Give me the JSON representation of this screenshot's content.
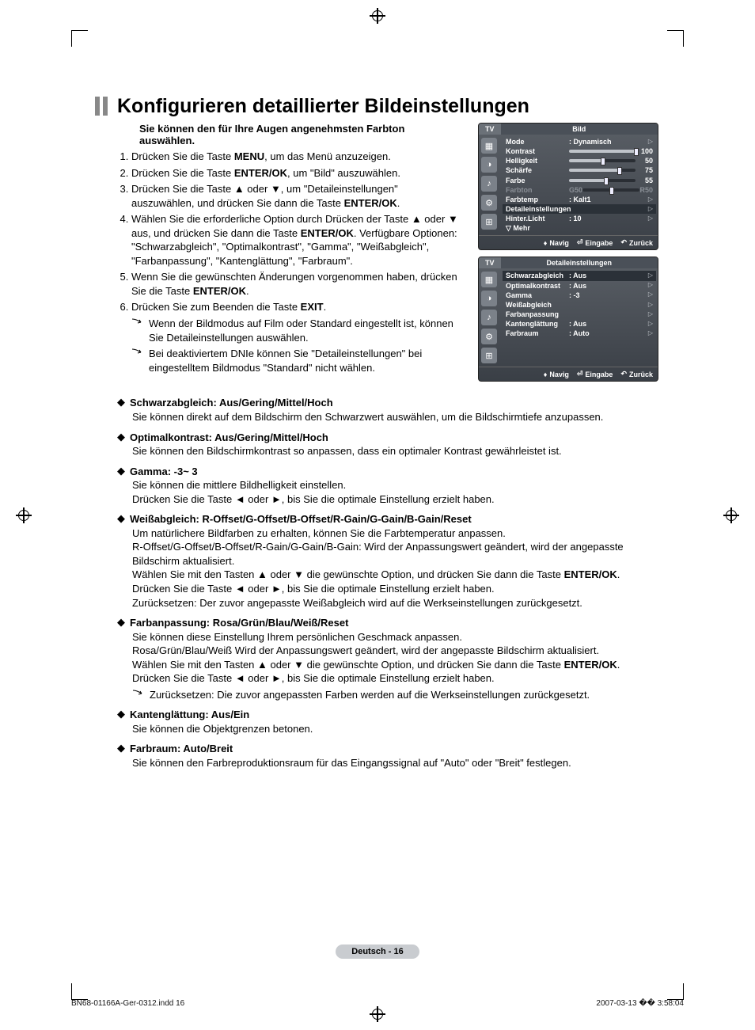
{
  "title": "Konfigurieren detaillierter Bildeinstellungen",
  "intro": "Sie können den für Ihre Augen angenehmsten Farbton auswählen.",
  "steps": [
    {
      "pre": "Drücken Sie die Taste ",
      "b": "MENU",
      "post": ", um das Menü anzuzeigen."
    },
    {
      "pre": "Drücken Sie die Taste ",
      "b": "ENTER/OK",
      "post": ", um \"Bild\" auszuwählen."
    },
    {
      "pre": "Drücken Sie die Taste ▲ oder ▼, um \"Detaileinstellungen\" auszuwählen, und drücken Sie dann die Taste ",
      "b": "ENTER/OK",
      "post": "."
    },
    {
      "pre": "Wählen Sie die erforderliche Option durch Drücken der Taste ▲ oder ▼ aus, und drücken Sie dann die Taste ",
      "b": "ENTER/OK",
      "post": ". Verfügbare Optionen: \"Schwarzabgleich\", \"Optimalkontrast\", \"Gamma\", \"Weißabgleich\", \"Farbanpassung\", \"Kantenglättung\", \"Farbraum\"."
    },
    {
      "pre": "Wenn Sie die gewünschten Änderungen vorgenommen haben, drücken Sie die Taste ",
      "b": "ENTER/OK",
      "post": "."
    },
    {
      "pre": "Drücken Sie zum Beenden die Taste ",
      "b": "EXIT",
      "post": "."
    }
  ],
  "notes_top": [
    "Wenn der Bildmodus auf Film oder Standard eingestellt ist, können Sie Detaileinstellungen auswählen.",
    "Bei deaktiviertem DNIe können Sie \"Detaileinstellungen\" bei eingestelltem Bildmodus \"Standard\" nicht wählen."
  ],
  "osd1": {
    "tab": "TV",
    "title": "Bild",
    "rows": [
      {
        "label": "Mode",
        "value": ": Dynamisch",
        "type": "arrow"
      },
      {
        "label": "Kontrast",
        "type": "slider",
        "fill": 100,
        "num": "100"
      },
      {
        "label": "Helligkeit",
        "type": "slider",
        "fill": 50,
        "num": "50"
      },
      {
        "label": "Schärfe",
        "type": "slider",
        "fill": 75,
        "num": "75"
      },
      {
        "label": "Farbe",
        "type": "slider",
        "fill": 55,
        "num": "55"
      },
      {
        "label": "Farbton",
        "type": "gr",
        "left": "G50",
        "right": "R50",
        "dim": true
      },
      {
        "label": "Farbtemp",
        "value": ": Kalt1",
        "type": "arrow"
      },
      {
        "label": "Detaileinstellungen",
        "type": "hl"
      },
      {
        "label": "Hinter.Licht",
        "value": ": 10",
        "type": "arrow"
      },
      {
        "label": "▽ Mehr",
        "type": "plain"
      }
    ],
    "footer": {
      "nav": "Navig",
      "enter": "Eingabe",
      "back": "Zurück"
    }
  },
  "osd2": {
    "tab": "TV",
    "title": "Detaileinstellungen",
    "rows": [
      {
        "label": "Schwarzabgleich",
        "value": ": Aus",
        "type": "hl-arrow"
      },
      {
        "label": "Optimalkontrast",
        "value": ": Aus",
        "type": "arrow"
      },
      {
        "label": "Gamma",
        "value": ": -3",
        "type": "arrow"
      },
      {
        "label": "Weißabgleich",
        "value": "",
        "type": "arrow"
      },
      {
        "label": "Farbanpassung",
        "value": "",
        "type": "arrow"
      },
      {
        "label": "Kantenglättung",
        "value": ": Aus",
        "type": "arrow"
      },
      {
        "label": "Farbraum",
        "value": ": Auto",
        "type": "arrow"
      }
    ],
    "footer": {
      "nav": "Navig",
      "enter": "Eingabe",
      "back": "Zurück"
    }
  },
  "bullets": [
    {
      "title": "Schwarzabgleich: Aus/Gering/Mittel/Hoch",
      "body": [
        "Sie können direkt auf dem Bildschirm den Schwarzwert auswählen, um die Bildschirmtiefe anzupassen."
      ]
    },
    {
      "title": "Optimalkontrast: Aus/Gering/Mittel/Hoch",
      "body": [
        "Sie können den Bildschirmkontrast so anpassen, dass ein optimaler Kontrast gewährleistet ist."
      ]
    },
    {
      "title": "Gamma: -3~ 3",
      "body": [
        "Sie können die mittlere Bildhelligkeit einstellen.",
        "Drücken Sie die Taste ◄ oder ►, bis Sie die optimale Einstellung erzielt haben."
      ]
    },
    {
      "title": "Weißabgleich: R-Offset/G-Offset/B-Offset/R-Gain/G-Gain/B-Gain/Reset",
      "body": [
        "Um natürlichere Bildfarben zu erhalten, können Sie die Farbtemperatur anpassen.",
        "R-Offset/G-Offset/B-Offset/R-Gain/G-Gain/B-Gain: Wird der Anpassungswert geändert, wird der angepasste Bildschirm aktualisiert.",
        "Wählen Sie mit den Tasten ▲ oder ▼ die gewünschte Option, und drücken Sie dann die Taste ENTER/OK.",
        "Drücken Sie die Taste ◄ oder ►, bis Sie die optimale Einstellung erzielt haben.",
        "Zurücksetzen: Der zuvor angepasste Weißabgleich wird auf die Werkseinstellungen zurückgesetzt."
      ],
      "bold_in": "ENTER/OK"
    },
    {
      "title": "Farbanpassung: Rosa/Grün/Blau/Weiß/Reset",
      "body": [
        "Sie können diese Einstellung Ihrem persönlichen Geschmack anpassen.",
        "Rosa/Grün/Blau/Weiß Wird der Anpassungswert geändert, wird der angepasste Bildschirm aktualisiert.",
        "Wählen Sie mit den Tasten ▲ oder ▼ die gewünschte Option, und drücken Sie dann die Taste ENTER/OK.",
        "Drücken Sie die Taste ◄ oder ►, bis Sie die optimale Einstellung erzielt haben."
      ],
      "bold_in": "ENTER/OK",
      "trailing_note": "Zurücksetzen: Die zuvor angepassten Farben werden auf die Werkseinstellungen zurückgesetzt."
    },
    {
      "title": "Kantenglättung: Aus/Ein",
      "body": [
        "Sie können die Objektgrenzen betonen."
      ]
    },
    {
      "title": "Farbraum: Auto/Breit",
      "body": [
        "Sie können den Farbreproduktionsraum für das Eingangssignal auf \"Auto\" oder \"Breit\" festlegen."
      ]
    }
  ],
  "footer_pill": "Deutsch - 16",
  "print": {
    "left": "BN68-01166A-Ger-0312.indd   16",
    "right": "2007-03-13   �� 3:58:04"
  }
}
